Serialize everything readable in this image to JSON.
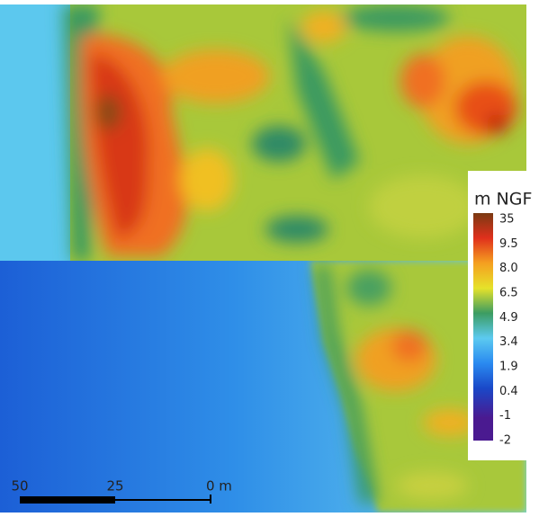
{
  "legend": {
    "title": "m NGF",
    "labels": [
      "35",
      "9.5",
      "8.0",
      "6.5",
      "4.9",
      "3.4",
      "1.9",
      "0.4",
      "-1",
      "-2"
    ]
  },
  "scale_bar": {
    "labels": [
      "50",
      "25",
      "0 m"
    ]
  }
}
